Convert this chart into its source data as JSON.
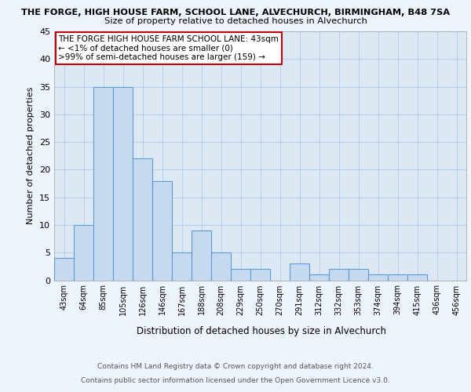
{
  "title_line1": "THE FORGE, HIGH HOUSE FARM, SCHOOL LANE, ALVECHURCH, BIRMINGHAM, B48 7SA",
  "title_line2": "Size of property relative to detached houses in Alvechurch",
  "xlabel": "Distribution of detached houses by size in Alvechurch",
  "ylabel": "Number of detached properties",
  "bin_labels": [
    "43sqm",
    "64sqm",
    "85sqm",
    "105sqm",
    "126sqm",
    "146sqm",
    "167sqm",
    "188sqm",
    "208sqm",
    "229sqm",
    "250sqm",
    "270sqm",
    "291sqm",
    "312sqm",
    "332sqm",
    "353sqm",
    "374sqm",
    "394sqm",
    "415sqm",
    "436sqm",
    "456sqm"
  ],
  "bar_values": [
    4,
    10,
    35,
    35,
    22,
    18,
    5,
    9,
    5,
    2,
    2,
    0,
    3,
    1,
    2,
    2,
    1,
    1,
    1,
    0,
    0
  ],
  "bar_color": "#c6d9f0",
  "bar_edge_color": "#5b9bd5",
  "highlight_color": "#c00000",
  "annotation_line1": "THE FORGE HIGH HOUSE FARM SCHOOL LANE: 43sqm",
  "annotation_line2": "← <1% of detached houses are smaller (0)",
  "annotation_line3": ">99% of semi-detached houses are larger (159) →",
  "ylim": [
    0,
    45
  ],
  "yticks": [
    0,
    5,
    10,
    15,
    20,
    25,
    30,
    35,
    40,
    45
  ],
  "footer_line1": "Contains HM Land Registry data © Crown copyright and database right 2024.",
  "footer_line2": "Contains public sector information licensed under the Open Government Licence v3.0.",
  "background_color": "#eef4fb",
  "plot_bg_color": "#dce9f5",
  "grid_color": "#b8cfe8"
}
